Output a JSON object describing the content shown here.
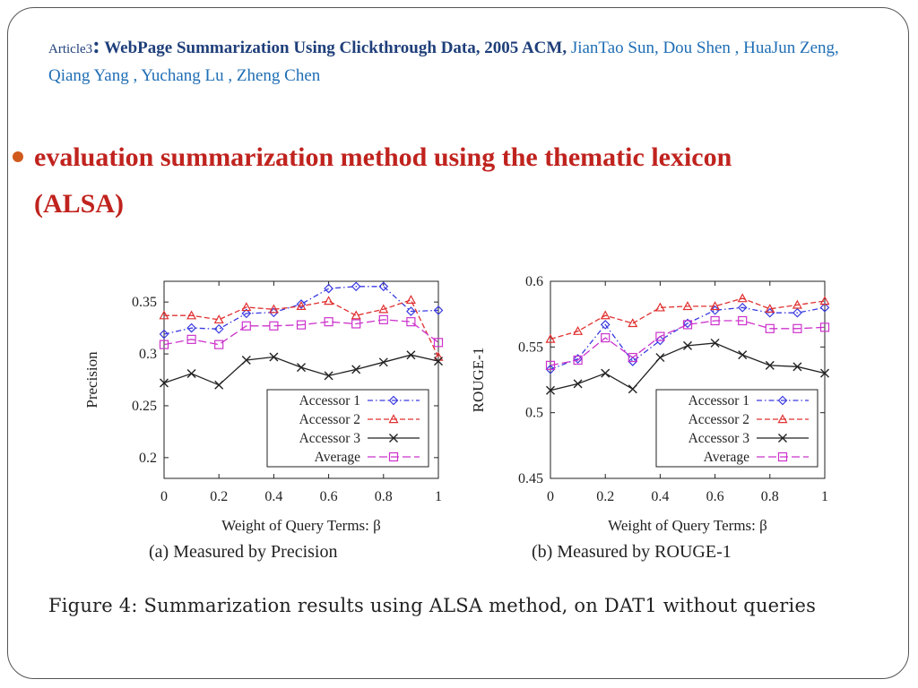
{
  "header": {
    "article": "Article3",
    "colon": ":",
    "title": " WebPage Summarization Using Clickthrough Data, 2005 ACM,",
    "authors": " JianTao Sun, Dou Shen , HuaJun Zeng, Qiang Yang , Yuchang Lu , Zheng Chen"
  },
  "bullet": {
    "line1": "evaluation summarization method using the thematic lexicon",
    "line2": "(ALSA)"
  },
  "figure_caption": "Figure 4: Summarization results using ALSA method, on DAT1 without queries",
  "colors": {
    "accessor1": "#3a3ae0",
    "accessor2": "#e03030",
    "accessor3": "#222222",
    "average": "#cc33cc"
  },
  "chart_data": [
    {
      "type": "line",
      "caption": "(a) Measured by Precision",
      "xlabel": "Weight of Query Terms: β",
      "ylabel": "Precision",
      "xlim": [
        0,
        1
      ],
      "ylim": [
        0.18,
        0.37
      ],
      "xticks": [
        0,
        0.2,
        0.4,
        0.6,
        0.8,
        1
      ],
      "xtick_labels": [
        "0",
        "0.2",
        "0.4",
        "0.6",
        "0.8",
        "1"
      ],
      "yticks": [
        0.2,
        0.25,
        0.3,
        0.35
      ],
      "ytick_labels": [
        "0.2",
        "0.25",
        "0.3",
        "0.35"
      ],
      "legend": "bottom-right",
      "x": [
        0,
        0.1,
        0.2,
        0.3,
        0.4,
        0.5,
        0.6,
        0.7,
        0.8,
        0.9,
        1.0
      ],
      "series": [
        {
          "name": "Accessor 1",
          "marker": "diamond",
          "dash": "dashdot",
          "values": [
            0.319,
            0.325,
            0.324,
            0.339,
            0.34,
            0.348,
            0.363,
            0.365,
            0.365,
            0.341,
            0.342
          ]
        },
        {
          "name": "Accessor 2",
          "marker": "triangle",
          "dash": "dashed",
          "values": [
            0.337,
            0.337,
            0.333,
            0.345,
            0.343,
            0.346,
            0.351,
            0.337,
            0.343,
            0.352,
            0.297
          ]
        },
        {
          "name": "Accessor 3",
          "marker": "cross",
          "dash": "solid",
          "values": [
            0.272,
            0.281,
            0.27,
            0.294,
            0.297,
            0.287,
            0.279,
            0.285,
            0.292,
            0.299,
            0.293
          ]
        },
        {
          "name": "Average",
          "marker": "square",
          "dash": "longdash",
          "values": [
            0.309,
            0.314,
            0.309,
            0.327,
            0.327,
            0.328,
            0.331,
            0.329,
            0.333,
            0.331,
            0.311
          ]
        }
      ]
    },
    {
      "type": "line",
      "caption": "(b) Measured by ROUGE-1",
      "xlabel": "Weight of Query Terms: β",
      "ylabel": "ROUGE-1",
      "xlim": [
        0,
        1
      ],
      "ylim": [
        0.45,
        0.6
      ],
      "xticks": [
        0,
        0.2,
        0.4,
        0.6,
        0.8,
        1
      ],
      "xtick_labels": [
        "0",
        "0.2",
        "0.4",
        "0.6",
        "0.8",
        "1"
      ],
      "yticks": [
        0.45,
        0.5,
        0.55,
        0.6
      ],
      "ytick_labels": [
        "0.45",
        "0.5",
        "0.55",
        "0.6"
      ],
      "legend": "bottom-right",
      "x": [
        0,
        0.1,
        0.2,
        0.3,
        0.4,
        0.5,
        0.6,
        0.7,
        0.8,
        0.9,
        1.0
      ],
      "series": [
        {
          "name": "Accessor 1",
          "marker": "diamond",
          "dash": "dashdot",
          "values": [
            0.533,
            0.541,
            0.567,
            0.539,
            0.555,
            0.568,
            0.578,
            0.58,
            0.576,
            0.576,
            0.58
          ]
        },
        {
          "name": "Accessor 2",
          "marker": "triangle",
          "dash": "dashed",
          "values": [
            0.556,
            0.562,
            0.574,
            0.568,
            0.58,
            0.581,
            0.581,
            0.587,
            0.579,
            0.582,
            0.585
          ]
        },
        {
          "name": "Accessor 3",
          "marker": "cross",
          "dash": "solid",
          "values": [
            0.517,
            0.522,
            0.53,
            0.518,
            0.542,
            0.551,
            0.553,
            0.544,
            0.536,
            0.535,
            0.53
          ]
        },
        {
          "name": "Average",
          "marker": "square",
          "dash": "longdash",
          "values": [
            0.536,
            0.54,
            0.557,
            0.542,
            0.558,
            0.567,
            0.57,
            0.57,
            0.564,
            0.564,
            0.565
          ]
        }
      ]
    }
  ]
}
